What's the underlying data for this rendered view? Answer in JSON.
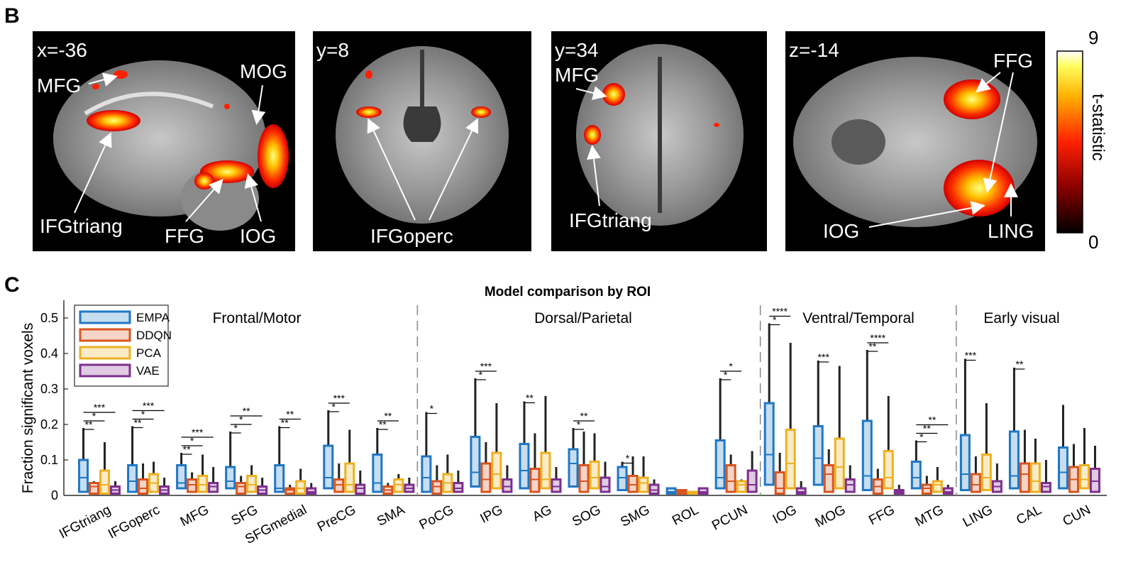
{
  "panel_b": {
    "letter": "B",
    "slices": [
      {
        "label": "x=-36",
        "rois": [
          "MFG",
          "MOG",
          "IFGtriang",
          "FFG",
          "IOG"
        ]
      },
      {
        "label": "y=8",
        "rois": [
          "IFGoperc"
        ]
      },
      {
        "label": "y=34",
        "rois": [
          "MFG",
          "IFGtriang"
        ]
      },
      {
        "label": "z=-14",
        "rois": [
          "FFG",
          "IOG",
          "LING"
        ]
      }
    ],
    "colorbar": {
      "max": "9",
      "min": "0",
      "label": "t-statistic"
    }
  },
  "panel_c": {
    "letter": "C",
    "title": "Model comparison by ROI",
    "ylabel": "Fraction significant voxels",
    "groups": [
      "Frontal/Motor",
      "Dorsal/Parietal",
      "Ventral/Temporal",
      "Early visual"
    ],
    "legend": [
      "EMPA",
      "DDQN",
      "PCA",
      "VAE"
    ],
    "colors": {
      "EMPA": "#1f77c4",
      "DDQN": "#d9541e",
      "PCA": "#edb120",
      "VAE": "#7e2f8e"
    }
  },
  "chart_data": {
    "type": "box",
    "title": "Model comparison by ROI",
    "ylabel": "Fraction significant voxels",
    "ylim": [
      0,
      0.55
    ],
    "yticks": [
      "0",
      "0.1",
      "0.2",
      "0.3",
      "0.4",
      "0.5"
    ],
    "categories": [
      "IFGtriang",
      "IFGoperc",
      "MFG",
      "SFG",
      "SFGmedial",
      "PreCG",
      "SMA",
      "PoCG",
      "IPG",
      "AG",
      "SOG",
      "SMG",
      "ROL",
      "PCUN",
      "IOG",
      "MOG",
      "FFG",
      "MTG",
      "LING",
      "CAL",
      "CUN"
    ],
    "series": [
      {
        "name": "EMPA",
        "boxes": [
          {
            "min": 0,
            "q1": 0.01,
            "med": 0.05,
            "q3": 0.1,
            "max": 0.19
          },
          {
            "min": 0,
            "q1": 0.01,
            "med": 0.04,
            "q3": 0.085,
            "max": 0.195
          },
          {
            "min": 0,
            "q1": 0.02,
            "med": 0.035,
            "q3": 0.085,
            "max": 0.12
          },
          {
            "min": 0,
            "q1": 0.02,
            "med": 0.04,
            "q3": 0.08,
            "max": 0.18
          },
          {
            "min": 0,
            "q1": 0.01,
            "med": 0.02,
            "q3": 0.085,
            "max": 0.195
          },
          {
            "min": 0,
            "q1": 0.02,
            "med": 0.05,
            "q3": 0.14,
            "max": 0.24
          },
          {
            "min": 0,
            "q1": 0.01,
            "med": 0.035,
            "q3": 0.115,
            "max": 0.19
          },
          {
            "min": 0,
            "q1": 0.01,
            "med": 0.05,
            "q3": 0.11,
            "max": 0.235
          },
          {
            "min": 0,
            "q1": 0.025,
            "med": 0.065,
            "q3": 0.165,
            "max": 0.33
          },
          {
            "min": 0,
            "q1": 0.02,
            "med": 0.07,
            "q3": 0.145,
            "max": 0.265
          },
          {
            "min": 0,
            "q1": 0.025,
            "med": 0.09,
            "q3": 0.13,
            "max": 0.19
          },
          {
            "min": 0,
            "q1": 0.015,
            "med": 0.05,
            "q3": 0.08,
            "max": 0.095
          },
          {
            "min": 0,
            "q1": 0.005,
            "med": 0.01,
            "q3": 0.02,
            "max": 0.02
          },
          {
            "min": 0,
            "q1": 0.02,
            "med": 0.05,
            "q3": 0.155,
            "max": 0.33
          },
          {
            "min": 0,
            "q1": 0.03,
            "med": 0.115,
            "q3": 0.26,
            "max": 0.485
          },
          {
            "min": 0,
            "q1": 0.03,
            "med": 0.105,
            "q3": 0.195,
            "max": 0.38
          },
          {
            "min": 0,
            "q1": 0.015,
            "med": 0.055,
            "q3": 0.21,
            "max": 0.41
          },
          {
            "min": 0,
            "q1": 0.02,
            "med": 0.05,
            "q3": 0.095,
            "max": 0.155
          },
          {
            "min": 0,
            "q1": 0.015,
            "med": 0.06,
            "q3": 0.17,
            "max": 0.385
          },
          {
            "min": 0,
            "q1": 0.02,
            "med": 0.055,
            "q3": 0.18,
            "max": 0.36
          },
          {
            "min": 0,
            "q1": 0.02,
            "med": 0.065,
            "q3": 0.135,
            "max": 0.255
          }
        ]
      },
      {
        "name": "DDQN",
        "boxes": [
          {
            "min": 0,
            "q1": 0.005,
            "med": 0.025,
            "q3": 0.035,
            "max": 0.04
          },
          {
            "min": 0,
            "q1": 0.005,
            "med": 0.02,
            "q3": 0.045,
            "max": 0.09
          },
          {
            "min": 0,
            "q1": 0.01,
            "med": 0.03,
            "q3": 0.045,
            "max": 0.065
          },
          {
            "min": 0,
            "q1": 0.005,
            "med": 0.025,
            "q3": 0.035,
            "max": 0.055
          },
          {
            "min": 0,
            "q1": 0.005,
            "med": 0.015,
            "q3": 0.02,
            "max": 0.03
          },
          {
            "min": 0,
            "q1": 0.01,
            "med": 0.03,
            "q3": 0.045,
            "max": 0.09
          },
          {
            "min": 0,
            "q1": 0.005,
            "med": 0.015,
            "q3": 0.025,
            "max": 0.035
          },
          {
            "min": 0,
            "q1": 0.005,
            "med": 0.025,
            "q3": 0.04,
            "max": 0.085
          },
          {
            "min": 0,
            "q1": 0.01,
            "med": 0.045,
            "q3": 0.09,
            "max": 0.15
          },
          {
            "min": 0,
            "q1": 0.01,
            "med": 0.045,
            "q3": 0.075,
            "max": 0.175
          },
          {
            "min": 0,
            "q1": 0.01,
            "med": 0.04,
            "q3": 0.085,
            "max": 0.18
          },
          {
            "min": 0,
            "q1": 0.01,
            "med": 0.03,
            "q3": 0.055,
            "max": 0.11
          },
          {
            "min": 0,
            "q1": 0.005,
            "med": 0.01,
            "q3": 0.015,
            "max": 0.015
          },
          {
            "min": 0,
            "q1": 0.01,
            "med": 0.04,
            "q3": 0.085,
            "max": 0.115
          },
          {
            "min": 0,
            "q1": 0.005,
            "med": 0.02,
            "q3": 0.065,
            "max": 0.12
          },
          {
            "min": 0,
            "q1": 0.01,
            "med": 0.06,
            "q3": 0.085,
            "max": 0.13
          },
          {
            "min": 0,
            "q1": 0.005,
            "med": 0.025,
            "q3": 0.045,
            "max": 0.075
          },
          {
            "min": 0,
            "q1": 0.005,
            "med": 0.02,
            "q3": 0.03,
            "max": 0.055
          },
          {
            "min": 0,
            "q1": 0.01,
            "med": 0.03,
            "q3": 0.06,
            "max": 0.11
          },
          {
            "min": 0,
            "q1": 0.01,
            "med": 0.06,
            "q3": 0.09,
            "max": 0.185
          },
          {
            "min": 0,
            "q1": 0.01,
            "med": 0.045,
            "q3": 0.08,
            "max": 0.145
          }
        ]
      },
      {
        "name": "PCA",
        "boxes": [
          {
            "min": 0,
            "q1": 0.005,
            "med": 0.03,
            "q3": 0.07,
            "max": 0.15
          },
          {
            "min": 0,
            "q1": 0.01,
            "med": 0.035,
            "q3": 0.06,
            "max": 0.095
          },
          {
            "min": 0,
            "q1": 0.01,
            "med": 0.03,
            "q3": 0.055,
            "max": 0.115
          },
          {
            "min": 0,
            "q1": 0.01,
            "med": 0.03,
            "q3": 0.055,
            "max": 0.085
          },
          {
            "min": 0,
            "q1": 0.005,
            "med": 0.02,
            "q3": 0.04,
            "max": 0.075
          },
          {
            "min": 0,
            "q1": 0.01,
            "med": 0.03,
            "q3": 0.09,
            "max": 0.185
          },
          {
            "min": 0,
            "q1": 0.01,
            "med": 0.03,
            "q3": 0.045,
            "max": 0.06
          },
          {
            "min": 0,
            "q1": 0.01,
            "med": 0.035,
            "q3": 0.06,
            "max": 0.115
          },
          {
            "min": 0,
            "q1": 0.02,
            "med": 0.06,
            "q3": 0.12,
            "max": 0.26
          },
          {
            "min": 0,
            "q1": 0.02,
            "med": 0.045,
            "q3": 0.12,
            "max": 0.28
          },
          {
            "min": 0,
            "q1": 0.02,
            "med": 0.05,
            "q3": 0.095,
            "max": 0.175
          },
          {
            "min": 0,
            "q1": 0.01,
            "med": 0.035,
            "q3": 0.05,
            "max": 0.11
          },
          {
            "min": 0,
            "q1": 0.005,
            "med": 0.01,
            "q3": 0.01,
            "max": 0.01
          },
          {
            "min": 0,
            "q1": 0.01,
            "med": 0.03,
            "q3": 0.04,
            "max": 0.045
          },
          {
            "min": 0,
            "q1": 0.02,
            "med": 0.09,
            "q3": 0.185,
            "max": 0.43
          },
          {
            "min": 0,
            "q1": 0.02,
            "med": 0.08,
            "q3": 0.16,
            "max": 0.365
          },
          {
            "min": 0,
            "q1": 0.02,
            "med": 0.05,
            "q3": 0.125,
            "max": 0.28
          },
          {
            "min": 0,
            "q1": 0.01,
            "med": 0.03,
            "q3": 0.04,
            "max": 0.08
          },
          {
            "min": 0,
            "q1": 0.015,
            "med": 0.05,
            "q3": 0.115,
            "max": 0.26
          },
          {
            "min": 0,
            "q1": 0.01,
            "med": 0.04,
            "q3": 0.09,
            "max": 0.16
          },
          {
            "min": 0,
            "q1": 0.02,
            "med": 0.045,
            "q3": 0.085,
            "max": 0.19
          }
        ]
      },
      {
        "name": "VAE",
        "boxes": [
          {
            "min": 0,
            "q1": 0.005,
            "med": 0.015,
            "q3": 0.025,
            "max": 0.04
          },
          {
            "min": 0,
            "q1": 0.005,
            "med": 0.015,
            "q3": 0.025,
            "max": 0.05
          },
          {
            "min": 0,
            "q1": 0.01,
            "med": 0.025,
            "q3": 0.035,
            "max": 0.08
          },
          {
            "min": 0,
            "q1": 0.005,
            "med": 0.015,
            "q3": 0.025,
            "max": 0.05
          },
          {
            "min": 0,
            "q1": 0.005,
            "med": 0.01,
            "q3": 0.02,
            "max": 0.035
          },
          {
            "min": 0,
            "q1": 0.005,
            "med": 0.02,
            "q3": 0.03,
            "max": 0.07
          },
          {
            "min": 0,
            "q1": 0.01,
            "med": 0.02,
            "q3": 0.03,
            "max": 0.05
          },
          {
            "min": 0,
            "q1": 0.01,
            "med": 0.02,
            "q3": 0.035,
            "max": 0.07
          },
          {
            "min": 0,
            "q1": 0.01,
            "med": 0.025,
            "q3": 0.045,
            "max": 0.085
          },
          {
            "min": 0,
            "q1": 0.01,
            "med": 0.025,
            "q3": 0.045,
            "max": 0.08
          },
          {
            "min": 0,
            "q1": 0.01,
            "med": 0.025,
            "q3": 0.05,
            "max": 0.095
          },
          {
            "min": 0,
            "q1": 0.005,
            "med": 0.015,
            "q3": 0.03,
            "max": 0.045
          },
          {
            "min": 0,
            "q1": 0.005,
            "med": 0.01,
            "q3": 0.02,
            "max": 0.02
          },
          {
            "min": 0,
            "q1": 0.01,
            "med": 0.03,
            "q3": 0.07,
            "max": 0.125
          },
          {
            "min": 0,
            "q1": 0.005,
            "med": 0.01,
            "q3": 0.02,
            "max": 0.04
          },
          {
            "min": 0,
            "q1": 0.01,
            "med": 0.03,
            "q3": 0.045,
            "max": 0.085
          },
          {
            "min": 0,
            "q1": 0.005,
            "med": 0.01,
            "q3": 0.015,
            "max": 0.03
          },
          {
            "min": 0,
            "q1": 0.005,
            "med": 0.01,
            "q3": 0.02,
            "max": 0.03
          },
          {
            "min": 0,
            "q1": 0.01,
            "med": 0.025,
            "q3": 0.04,
            "max": 0.09
          },
          {
            "min": 0,
            "q1": 0.01,
            "med": 0.025,
            "q3": 0.035,
            "max": 0.1
          },
          {
            "min": 0,
            "q1": 0.01,
            "med": 0.04,
            "q3": 0.075,
            "max": 0.14
          }
        ]
      }
    ],
    "significance": [
      {
        "roi": "IFGtriang",
        "marks": [
          "**",
          "*",
          "***"
        ]
      },
      {
        "roi": "IFGoperc",
        "marks": [
          "**",
          "*",
          "***"
        ]
      },
      {
        "roi": "MFG",
        "marks": [
          "**",
          "*",
          "***"
        ]
      },
      {
        "roi": "SFG",
        "marks": [
          "*",
          "*",
          "**"
        ]
      },
      {
        "roi": "SFGmedial",
        "marks": [
          "**",
          "**"
        ]
      },
      {
        "roi": "PreCG",
        "marks": [
          "*",
          "***"
        ]
      },
      {
        "roi": "SMA",
        "marks": [
          "**",
          "**"
        ]
      },
      {
        "roi": "PoCG",
        "marks": [
          "*"
        ]
      },
      {
        "roi": "IPG",
        "marks": [
          "*",
          "***"
        ]
      },
      {
        "roi": "AG",
        "marks": [
          "**"
        ]
      },
      {
        "roi": "SOG",
        "marks": [
          "*",
          "**"
        ]
      },
      {
        "roi": "SMG",
        "marks": [
          "*"
        ]
      },
      {
        "roi": "PCUN",
        "marks": [
          "*",
          "*"
        ]
      },
      {
        "roi": "IOG",
        "marks": [
          "*",
          "****"
        ]
      },
      {
        "roi": "MOG",
        "marks": [
          "***"
        ]
      },
      {
        "roi": "FFG",
        "marks": [
          "**",
          "****"
        ]
      },
      {
        "roi": "MTG",
        "marks": [
          "*",
          "**",
          "**"
        ]
      },
      {
        "roi": "LING",
        "marks": [
          "***"
        ]
      },
      {
        "roi": "CAL",
        "marks": [
          "**"
        ]
      }
    ]
  }
}
